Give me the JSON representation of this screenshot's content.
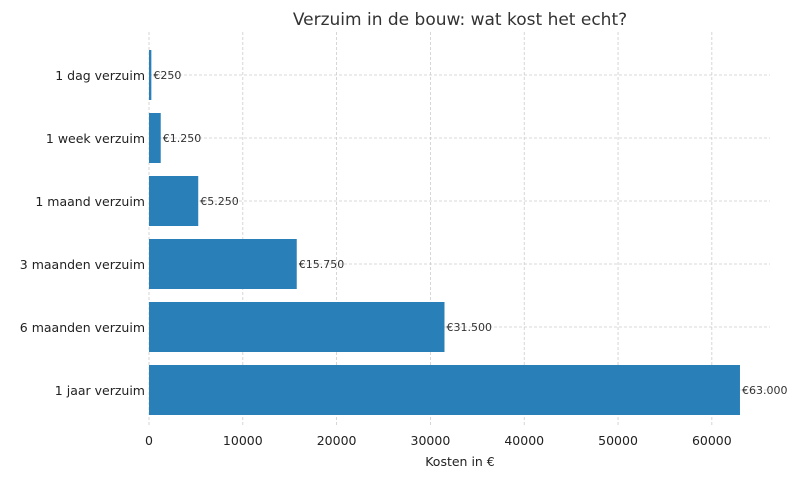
{
  "chart_data": {
    "type": "bar",
    "orientation": "horizontal",
    "title": "Verzuim in de bouw: wat kost het echt?",
    "xlabel": "Kosten in €",
    "ylabel": "",
    "categories": [
      "1 dag verzuim",
      "1 week verzuim",
      "1 maand verzuim",
      "3 maanden verzuim",
      "6 maanden verzuim",
      "1 jaar verzuim"
    ],
    "values": [
      250,
      1250,
      5250,
      15750,
      31500,
      63000
    ],
    "data_labels": [
      "€250",
      "€1.250",
      "€5.250",
      "€15.750",
      "€31.500",
      "€63.000"
    ],
    "xticks": [
      0,
      10000,
      20000,
      30000,
      40000,
      50000,
      60000
    ],
    "xtick_labels": [
      "0",
      "10000",
      "20000",
      "30000",
      "40000",
      "50000",
      "60000"
    ],
    "xlim": [
      0,
      66200
    ],
    "grid": true,
    "bar_color": "#2980b9",
    "grid_color": "#cccccc"
  }
}
